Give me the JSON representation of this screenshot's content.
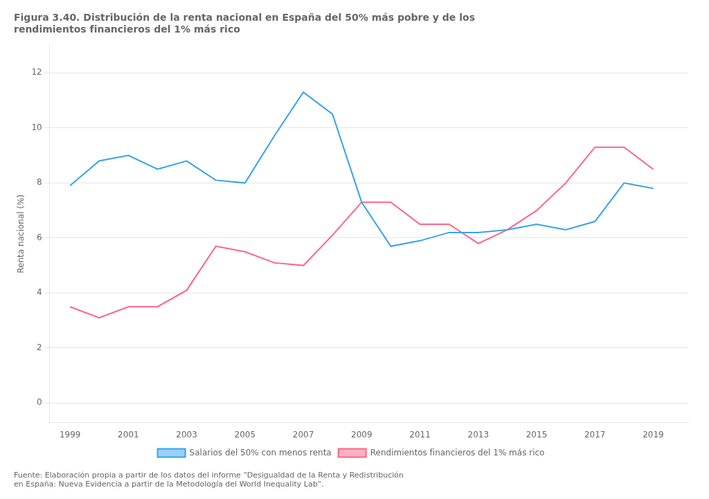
{
  "chart_data": {
    "type": "line",
    "title": [
      "Figura 3.40. Distribución de la renta nacional en España del 50% más pobre y de los",
      "rendimientos financieros del 1% más rico"
    ],
    "annotations": [
      "Fuente: Elaboración propia a partir de los datos del informe “Desigualdad de la Renta y Redistribución",
      "en España: Nueva Evidencia a partir de la Metodología del World Inequality Lab”."
    ],
    "ylabel": "Renta nacional (%)",
    "x": [
      1999,
      2000,
      2001,
      2002,
      2003,
      2004,
      2005,
      2006,
      2007,
      2008,
      2009,
      2010,
      2011,
      2012,
      2013,
      2014,
      2015,
      2016,
      2017,
      2018,
      2019
    ],
    "series": [
      {
        "name": "Salarios del 50% con menos renta",
        "values": [
          7.9,
          8.8,
          9.0,
          8.5,
          8.8,
          8.1,
          8.0,
          9.7,
          11.3,
          10.5,
          7.3,
          5.7,
          5.9,
          6.2,
          6.2,
          6.3,
          6.5,
          6.3,
          6.6,
          8.0,
          7.8
        ]
      },
      {
        "name": "Rendimientos financieros del 1% más rico",
        "values": [
          3.5,
          3.1,
          3.5,
          3.5,
          4.1,
          5.7,
          5.5,
          5.1,
          5.0,
          6.1,
          7.3,
          7.3,
          6.5,
          6.5,
          5.8,
          6.3,
          7.0,
          8.0,
          9.3,
          9.3,
          8.5
        ]
      }
    ],
    "xlim": [
      1998.3,
      2020.2
    ],
    "xticks": [
      1999,
      2001,
      2003,
      2005,
      2007,
      2009,
      2011,
      2013,
      2015,
      2017,
      2019
    ],
    "ylim": [
      -0.7,
      13.0
    ],
    "yticks": [
      0,
      2,
      4,
      6,
      8,
      10,
      12
    ],
    "grid": "y",
    "legend": "bottom"
  }
}
